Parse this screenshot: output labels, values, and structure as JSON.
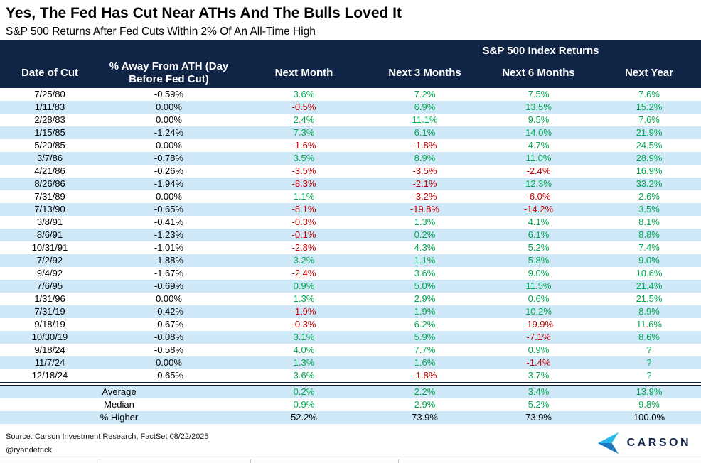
{
  "header": {
    "title": "Yes, The Fed Has Cut Near ATHs And The Bulls Loved It",
    "subtitle": "S&P 500 Returns After Fed Cuts Within 2% Of An All-Time High"
  },
  "chart_data": {
    "type": "table",
    "group_header": "S&P 500 Index Returns",
    "columns": [
      "Date of Cut",
      "% Away From ATH (Day Before Fed Cut)",
      "Next Month",
      "Next 3 Months",
      "Next 6 Months",
      "Next Year"
    ],
    "rows": [
      [
        "7/25/80",
        "-0.59%",
        "3.6%",
        "7.2%",
        "7.5%",
        "7.6%"
      ],
      [
        "1/11/83",
        "0.00%",
        "-0.5%",
        "6.9%",
        "13.5%",
        "15.2%"
      ],
      [
        "2/28/83",
        "0.00%",
        "2.4%",
        "11.1%",
        "9.5%",
        "7.6%"
      ],
      [
        "1/15/85",
        "-1.24%",
        "7.3%",
        "6.1%",
        "14.0%",
        "21.9%"
      ],
      [
        "5/20/85",
        "0.00%",
        "-1.6%",
        "-1.8%",
        "4.7%",
        "24.5%"
      ],
      [
        "3/7/86",
        "-0.78%",
        "3.5%",
        "8.9%",
        "11.0%",
        "28.9%"
      ],
      [
        "4/21/86",
        "-0.26%",
        "-3.5%",
        "-3.5%",
        "-2.4%",
        "16.9%"
      ],
      [
        "8/26/86",
        "-1.94%",
        "-8.3%",
        "-2.1%",
        "12.3%",
        "33.2%"
      ],
      [
        "7/31/89",
        "0.00%",
        "1.1%",
        "-3.2%",
        "-6.0%",
        "2.6%"
      ],
      [
        "7/13/90",
        "-0.65%",
        "-8.1%",
        "-19.8%",
        "-14.2%",
        "3.5%"
      ],
      [
        "3/8/91",
        "-0.41%",
        "-0.3%",
        "1.3%",
        "4.1%",
        "8.1%"
      ],
      [
        "8/6/91",
        "-1.23%",
        "-0.1%",
        "0.2%",
        "6.1%",
        "8.8%"
      ],
      [
        "10/31/91",
        "-1.01%",
        "-2.8%",
        "4.3%",
        "5.2%",
        "7.4%"
      ],
      [
        "7/2/92",
        "-1.88%",
        "3.2%",
        "1.1%",
        "5.8%",
        "9.0%"
      ],
      [
        "9/4/92",
        "-1.67%",
        "-2.4%",
        "3.6%",
        "9.0%",
        "10.6%"
      ],
      [
        "7/6/95",
        "-0.69%",
        "0.9%",
        "5.0%",
        "11.5%",
        "21.4%"
      ],
      [
        "1/31/96",
        "0.00%",
        "1.3%",
        "2.9%",
        "0.6%",
        "21.5%"
      ],
      [
        "7/31/19",
        "-0.42%",
        "-1.9%",
        "1.9%",
        "10.2%",
        "8.9%"
      ],
      [
        "9/18/19",
        "-0.67%",
        "-0.3%",
        "6.2%",
        "-19.9%",
        "11.6%"
      ],
      [
        "10/30/19",
        "-0.08%",
        "3.1%",
        "5.9%",
        "-7.1%",
        "8.6%"
      ],
      [
        "9/18/24",
        "-0.58%",
        "4.0%",
        "7.7%",
        "0.9%",
        "?"
      ],
      [
        "11/7/24",
        "0.00%",
        "1.3%",
        "1.6%",
        "-1.4%",
        "?"
      ],
      [
        "12/18/24",
        "-0.65%",
        "3.6%",
        "-1.8%",
        "3.7%",
        "?"
      ]
    ],
    "summary": [
      {
        "label": "Average",
        "values": [
          "0.2%",
          "2.2%",
          "3.4%",
          "13.9%"
        ],
        "style": "green"
      },
      {
        "label": "Median",
        "values": [
          "0.9%",
          "2.9%",
          "5.2%",
          "9.8%"
        ],
        "style": "green"
      },
      {
        "label": "% Higher",
        "values": [
          "52.2%",
          "73.9%",
          "73.9%",
          "100.0%"
        ],
        "style": "black"
      }
    ]
  },
  "footer": {
    "source": "Source: Carson Investment Research, FactSet 08/22/2025",
    "handle": "@ryandetrick",
    "logo_text": "CARSON"
  },
  "colors": {
    "header_navy": "#102445",
    "positive_green": "#00A94F",
    "negative_red": "#C00000",
    "row_stripe_blue": "#CEE8F8",
    "logo_light_blue": "#2BB9EA",
    "logo_dark_blue": "#1B78BE"
  }
}
